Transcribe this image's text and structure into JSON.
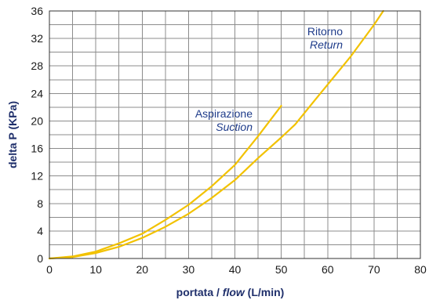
{
  "chart_data": {
    "type": "line",
    "xlabel_main": "portata / ",
    "xlabel_italic": "flow",
    "xlabel_unit": " (L/min)",
    "ylabel": "delta P (KPa)",
    "xlim": [
      0,
      80
    ],
    "ylim": [
      0,
      36
    ],
    "x_ticks": [
      0,
      10,
      20,
      30,
      40,
      50,
      60,
      70,
      80
    ],
    "y_ticks": [
      0,
      4,
      8,
      12,
      16,
      20,
      24,
      28,
      32,
      36
    ],
    "grid": true,
    "series": [
      {
        "name": "Aspirazione",
        "color": "#f2c200",
        "points": [
          [
            0,
            0
          ],
          [
            5,
            0.3
          ],
          [
            10,
            1.0
          ],
          [
            15,
            2.2
          ],
          [
            20,
            3.6
          ],
          [
            25,
            5.6
          ],
          [
            30,
            7.8
          ],
          [
            35,
            10.5
          ],
          [
            40,
            13.6
          ],
          [
            45,
            17.8
          ],
          [
            50,
            22.2
          ]
        ]
      },
      {
        "name": "Ritorno",
        "color": "#f2c200",
        "points": [
          [
            0,
            0
          ],
          [
            5,
            0.2
          ],
          [
            10,
            0.8
          ],
          [
            15,
            1.7
          ],
          [
            20,
            3.0
          ],
          [
            25,
            4.6
          ],
          [
            30,
            6.5
          ],
          [
            35,
            8.8
          ],
          [
            40,
            11.4
          ],
          [
            45,
            14.6
          ],
          [
            50,
            17.6
          ],
          [
            53,
            19.5
          ],
          [
            56,
            22.0
          ],
          [
            60,
            25.3
          ],
          [
            65,
            29.4
          ],
          [
            70,
            34.0
          ],
          [
            72,
            36.0
          ]
        ]
      }
    ],
    "annotations": [
      {
        "line1": "Aspirazione",
        "line2": "Suction"
      },
      {
        "line1": "Ritorno",
        "line2": "Return"
      }
    ]
  }
}
